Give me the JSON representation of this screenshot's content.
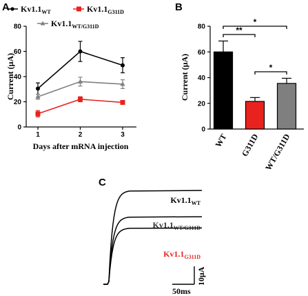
{
  "panels": {
    "a": "A",
    "b": "B",
    "c": "C"
  },
  "legend": [
    {
      "base": "Kv1.1",
      "sub": "WT",
      "color": "#000000"
    },
    {
      "base": "Kv1.1",
      "sub": "G311D",
      "color": "#e8231f"
    },
    {
      "base": "Kv1.1",
      "sub": "WT/G311D",
      "color": "#7f7f7f"
    }
  ],
  "chart_data": [
    {
      "type": "line",
      "panel": "A",
      "xlabel": "Days after mRNA injection",
      "ylabel": "Current (μA)",
      "x": [
        1,
        2,
        3
      ],
      "xticks": [
        "1",
        "2",
        "3"
      ],
      "ylim": [
        0,
        80
      ],
      "yticks": [
        "0",
        "20",
        "40",
        "60",
        "80"
      ],
      "series": [
        {
          "name": "Kv1.1WT",
          "color": "#000000",
          "values": [
            30.5,
            60,
            49
          ],
          "errors": [
            4.5,
            8,
            6
          ]
        },
        {
          "name": "Kv1.1WT/G311D",
          "color": "#7f7f7f",
          "values": [
            24,
            36,
            34
          ],
          "errors": [
            2,
            3.5,
            3.5
          ]
        },
        {
          "name": "Kv1.1G311D",
          "color": "#e8231f",
          "values": [
            10.5,
            22,
            19.5
          ],
          "errors": [
            2.5,
            2,
            1.5
          ]
        }
      ]
    },
    {
      "type": "bar",
      "panel": "B",
      "ylabel": "Current (μA)",
      "categories": [
        "WT",
        "G311D",
        "WT/G311D"
      ],
      "values": [
        60,
        21.5,
        35.5
      ],
      "errors": [
        8.5,
        3,
        4
      ],
      "colors": [
        "#000000",
        "#e8231f",
        "#7f7f7f"
      ],
      "ylim": [
        0,
        80
      ],
      "yticks": [
        "0",
        "20",
        "40",
        "60",
        "80"
      ],
      "significance": [
        {
          "from": 0,
          "to": 1,
          "label": "**"
        },
        {
          "from": 0,
          "to": 2,
          "label": "*"
        },
        {
          "from": 1,
          "to": 2,
          "label": "*"
        }
      ]
    }
  ],
  "traces": {
    "panel": "C",
    "items": [
      {
        "base": "Kv1.1",
        "sub": "WT",
        "color": "#000000",
        "level": 1.0
      },
      {
        "base": "Kv1.1",
        "sub": "WT/G311D",
        "color": "#333333",
        "level": 0.72
      },
      {
        "base": "Kv1.1",
        "sub": "G311D",
        "color": "#e8231f",
        "level": 0.6
      }
    ],
    "scale_x": "50ms",
    "scale_y": "10μA"
  }
}
